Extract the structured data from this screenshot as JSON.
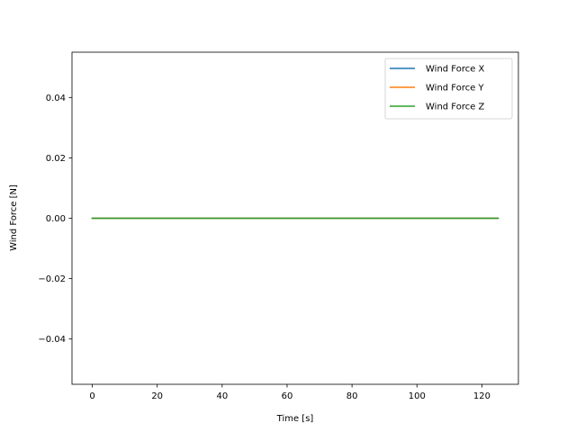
{
  "chart_data": {
    "type": "line",
    "title": "",
    "xlabel": "Time [s]",
    "ylabel": "Wind Force [N]",
    "xlim": [
      -6.25,
      131.25
    ],
    "ylim": [
      -0.055,
      0.055
    ],
    "xticks": [
      0,
      20,
      40,
      60,
      80,
      100,
      120
    ],
    "yticks": [
      -0.04,
      -0.02,
      0.0,
      0.02,
      0.04
    ],
    "xtick_labels": [
      "0",
      "20",
      "40",
      "60",
      "80",
      "100",
      "120"
    ],
    "ytick_labels": [
      "−0.04",
      "−0.02",
      "0.00",
      "0.02",
      "0.04"
    ],
    "grid": false,
    "legend_position": "top-right",
    "x": [
      0,
      125
    ],
    "series": [
      {
        "name": "Wind Force X",
        "color": "#1f77b4",
        "values": [
          0,
          0
        ]
      },
      {
        "name": "Wind Force Y",
        "color": "#ff7f0e",
        "values": [
          0,
          0
        ]
      },
      {
        "name": "Wind Force Z",
        "color": "#2ca02c",
        "values": [
          0,
          0
        ]
      }
    ]
  }
}
